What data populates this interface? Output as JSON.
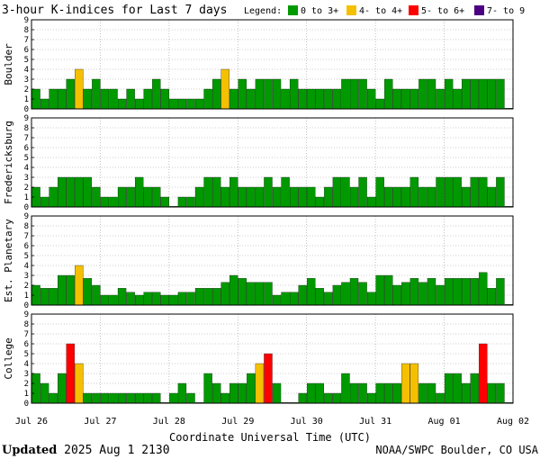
{
  "title": "3-hour K-indices for Last 7 days",
  "legend": {
    "label": "Legend:",
    "items": [
      {
        "label": "0 to 3+",
        "color": "#009900"
      },
      {
        "label": "4- to 4+",
        "color": "#f5c000"
      },
      {
        "label": "5- to 6+",
        "color": "#ff0000"
      },
      {
        "label": "7- to 9",
        "color": "#4b0082"
      }
    ]
  },
  "xlabel": "Coordinate Universal Time (UTC)",
  "footer": {
    "updated_label": "Updated",
    "updated_value": "2025 Aug  1 2130",
    "source": "NOAA/SWPC Boulder, CO USA"
  },
  "chart_data": {
    "type": "bar",
    "x_ticks": [
      "Jul 26",
      "Jul 27",
      "Jul 28",
      "Jul 29",
      "Jul 30",
      "Jul 31",
      "Aug 01",
      "Aug 02"
    ],
    "y_ticks": [
      "0",
      "1",
      "2",
      "3",
      "4",
      "5",
      "6",
      "7",
      "8",
      "9"
    ],
    "ylim": [
      0,
      9
    ],
    "bins_per_day": 8,
    "grid": true,
    "panels": [
      {
        "name": "Boulder",
        "values": [
          2,
          1,
          2,
          2,
          3,
          4,
          2,
          3,
          2,
          2,
          1,
          2,
          1,
          2,
          3,
          2,
          1,
          1,
          1,
          1,
          2,
          3,
          4,
          2,
          3,
          2,
          3,
          3,
          3,
          2,
          3,
          2,
          2,
          2,
          2,
          2,
          3,
          3,
          3,
          2,
          1,
          3,
          2,
          2,
          2,
          3,
          3,
          2,
          3,
          2,
          3,
          3,
          3,
          3,
          3,
          0
        ]
      },
      {
        "name": "Fredericksburg",
        "values": [
          2,
          1,
          2,
          3,
          3,
          3,
          3,
          2,
          1,
          1,
          2,
          2,
          3,
          2,
          2,
          1,
          0,
          1,
          1,
          2,
          3,
          3,
          2,
          3,
          2,
          2,
          2,
          3,
          2,
          3,
          2,
          2,
          2,
          1,
          2,
          3,
          3,
          2,
          3,
          1,
          3,
          2,
          2,
          2,
          3,
          2,
          2,
          3,
          3,
          3,
          2,
          3,
          3,
          2,
          3,
          0
        ]
      },
      {
        "name": "Est. Planetary",
        "values": [
          2,
          1.7,
          1.7,
          3,
          3,
          4,
          2.7,
          2,
          1,
          1,
          1.7,
          1.3,
          1,
          1.3,
          1.3,
          1,
          1,
          1.3,
          1.3,
          1.7,
          1.7,
          1.7,
          2.3,
          3,
          2.7,
          2.3,
          2.3,
          2.3,
          1,
          1.3,
          1.3,
          2,
          2.7,
          1.7,
          1.3,
          2,
          2.3,
          2.7,
          2.3,
          1.3,
          3,
          3,
          2,
          2.3,
          2.7,
          2.3,
          2.7,
          2,
          2.7,
          2.7,
          2.7,
          2.7,
          3.3,
          1.7,
          2.7,
          0
        ]
      },
      {
        "name": "College",
        "values": [
          3,
          2,
          1,
          3,
          6,
          4,
          1,
          1,
          1,
          1,
          1,
          1,
          1,
          1,
          1,
          0,
          1,
          2,
          1,
          0,
          3,
          2,
          1,
          2,
          2,
          3,
          4,
          5,
          2,
          0,
          0,
          1,
          2,
          2,
          1,
          1,
          3,
          2,
          2,
          1,
          2,
          2,
          2,
          4,
          4,
          2,
          2,
          1,
          3,
          3,
          2,
          3,
          6,
          2,
          2,
          0
        ]
      }
    ]
  }
}
